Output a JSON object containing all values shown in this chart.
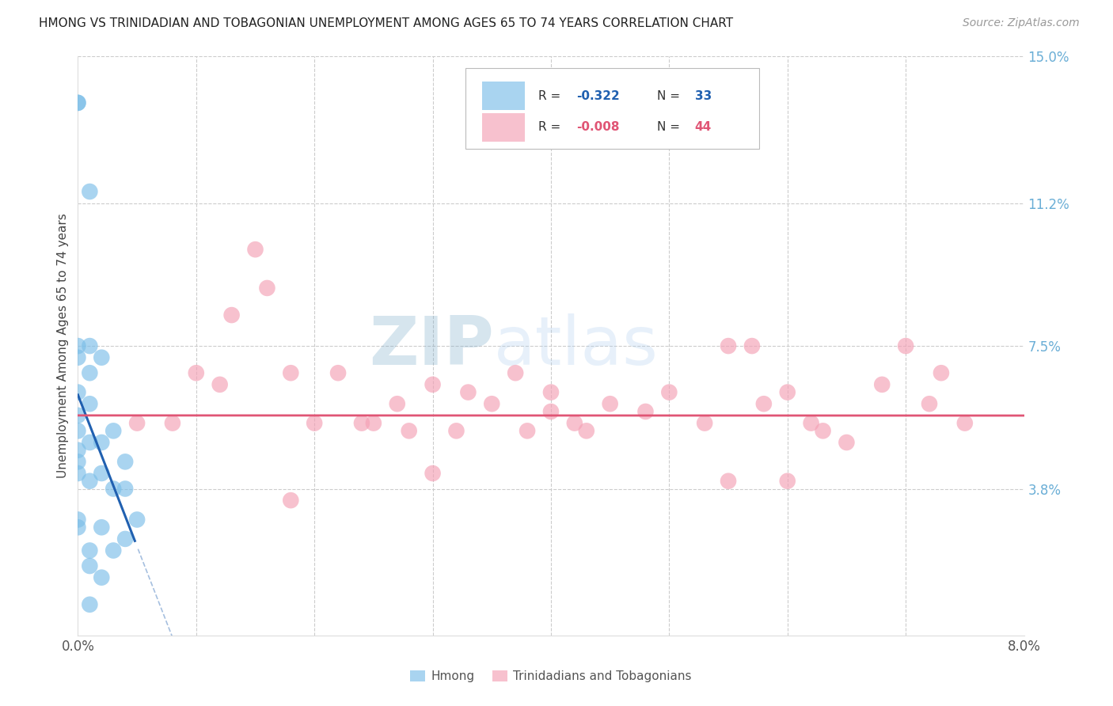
{
  "title": "HMONG VS TRINIDADIAN AND TOBAGONIAN UNEMPLOYMENT AMONG AGES 65 TO 74 YEARS CORRELATION CHART",
  "source": "Source: ZipAtlas.com",
  "ylabel": "Unemployment Among Ages 65 to 74 years",
  "xlim": [
    0.0,
    0.08
  ],
  "ylim": [
    0.0,
    0.15
  ],
  "hmong_color": "#7bbee8",
  "tnt_color": "#f4a0b5",
  "hmong_line_color": "#2060b0",
  "tnt_line_color": "#e05575",
  "watermark_color": "#c8ddf0",
  "right_tick_color": "#6aaed6",
  "hmong_x": [
    0.0,
    0.0,
    0.0,
    0.0,
    0.0,
    0.0,
    0.0,
    0.0,
    0.0,
    0.0,
    0.001,
    0.001,
    0.001,
    0.001,
    0.001,
    0.001,
    0.002,
    0.002,
    0.002,
    0.003,
    0.003,
    0.004,
    0.004,
    0.004,
    0.005,
    0.002,
    0.003,
    0.001,
    0.002,
    0.0,
    0.0,
    0.001,
    0.001
  ],
  "hmong_y": [
    0.138,
    0.138,
    0.075,
    0.072,
    0.063,
    0.057,
    0.053,
    0.048,
    0.03,
    0.028,
    0.115,
    0.075,
    0.068,
    0.06,
    0.05,
    0.04,
    0.072,
    0.05,
    0.042,
    0.053,
    0.038,
    0.045,
    0.038,
    0.025,
    0.03,
    0.028,
    0.022,
    0.018,
    0.015,
    0.045,
    0.042,
    0.022,
    0.008
  ],
  "tnt_x": [
    0.005,
    0.008,
    0.01,
    0.012,
    0.013,
    0.015,
    0.016,
    0.018,
    0.02,
    0.022,
    0.024,
    0.025,
    0.027,
    0.028,
    0.03,
    0.032,
    0.033,
    0.035,
    0.037,
    0.038,
    0.04,
    0.04,
    0.042,
    0.043,
    0.045,
    0.048,
    0.05,
    0.053,
    0.055,
    0.057,
    0.058,
    0.06,
    0.062,
    0.063,
    0.065,
    0.068,
    0.07,
    0.072,
    0.073,
    0.075,
    0.018,
    0.03,
    0.055,
    0.06
  ],
  "tnt_y": [
    0.055,
    0.055,
    0.068,
    0.065,
    0.083,
    0.1,
    0.09,
    0.068,
    0.055,
    0.068,
    0.055,
    0.055,
    0.06,
    0.053,
    0.065,
    0.053,
    0.063,
    0.06,
    0.068,
    0.053,
    0.063,
    0.058,
    0.055,
    0.053,
    0.06,
    0.058,
    0.063,
    0.055,
    0.075,
    0.075,
    0.06,
    0.063,
    0.055,
    0.053,
    0.05,
    0.065,
    0.075,
    0.06,
    0.068,
    0.055,
    0.035,
    0.042,
    0.04,
    0.04
  ],
  "hmong_line_x0": 0.0,
  "hmong_line_x1": 0.005,
  "hmong_line_x_dash_end": 0.08,
  "tnt_line_intercept": 0.057,
  "tnt_line_slope": -0.0005
}
